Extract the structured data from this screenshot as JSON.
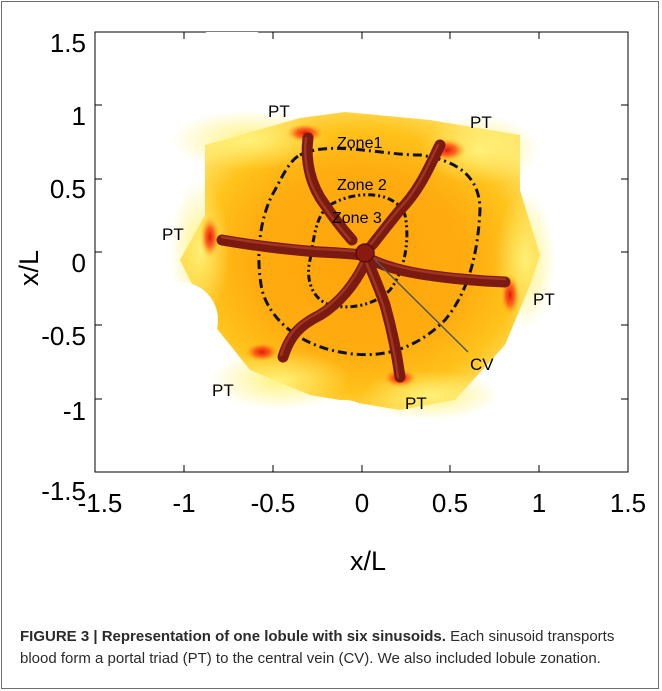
{
  "chart_data": {
    "type": "heatmap",
    "title": "",
    "xlabel": "x/L",
    "ylabel": "x/L",
    "xlim": [
      -1.5,
      1.5
    ],
    "ylim": [
      -1.5,
      1.5
    ],
    "xticks": [
      -1.5,
      -1,
      -0.5,
      0,
      0.5,
      1,
      1.5
    ],
    "yticks": [
      -1.5,
      -1,
      -0.5,
      0,
      0.5,
      1,
      1.5
    ],
    "x_tick_labels": [
      "-1.5",
      "-1",
      "-0.5",
      "0",
      "0.5",
      "1",
      "1.5"
    ],
    "y_tick_labels": [
      "-1.5",
      "-1",
      "-0.5",
      "0",
      "0.5",
      "1",
      "1.5"
    ],
    "grid": false,
    "central_vein": {
      "label": "CV",
      "x": 0.0,
      "y": 0.0
    },
    "portal_triads": [
      {
        "label": "PT",
        "x": -0.3,
        "y": 0.88
      },
      {
        "label": "PT",
        "x": 0.47,
        "y": 0.78
      },
      {
        "label": "PT",
        "x": -0.88,
        "y": 0.17
      },
      {
        "label": "PT",
        "x": 0.85,
        "y": -0.26
      },
      {
        "label": "PT",
        "x": -0.47,
        "y": -0.7
      },
      {
        "label": "PT",
        "x": 0.22,
        "y": -0.87
      }
    ],
    "zones": [
      "Zone1",
      "Zone 2",
      "Zone 3"
    ],
    "sinusoid_count": 6,
    "colors": {
      "sinusoid": "#7a1a10",
      "high": "#e81e12",
      "mid": "#ffd21e",
      "low": "#ffaa0c",
      "boundary": "#111111"
    }
  },
  "caption": {
    "title": "FIGURE 3 | Representation of one lobule with six sinusoids.",
    "text": " Each sinusoid transports blood form a portal triad (PT) to the central vein (CV). We also included lobule zonation."
  }
}
